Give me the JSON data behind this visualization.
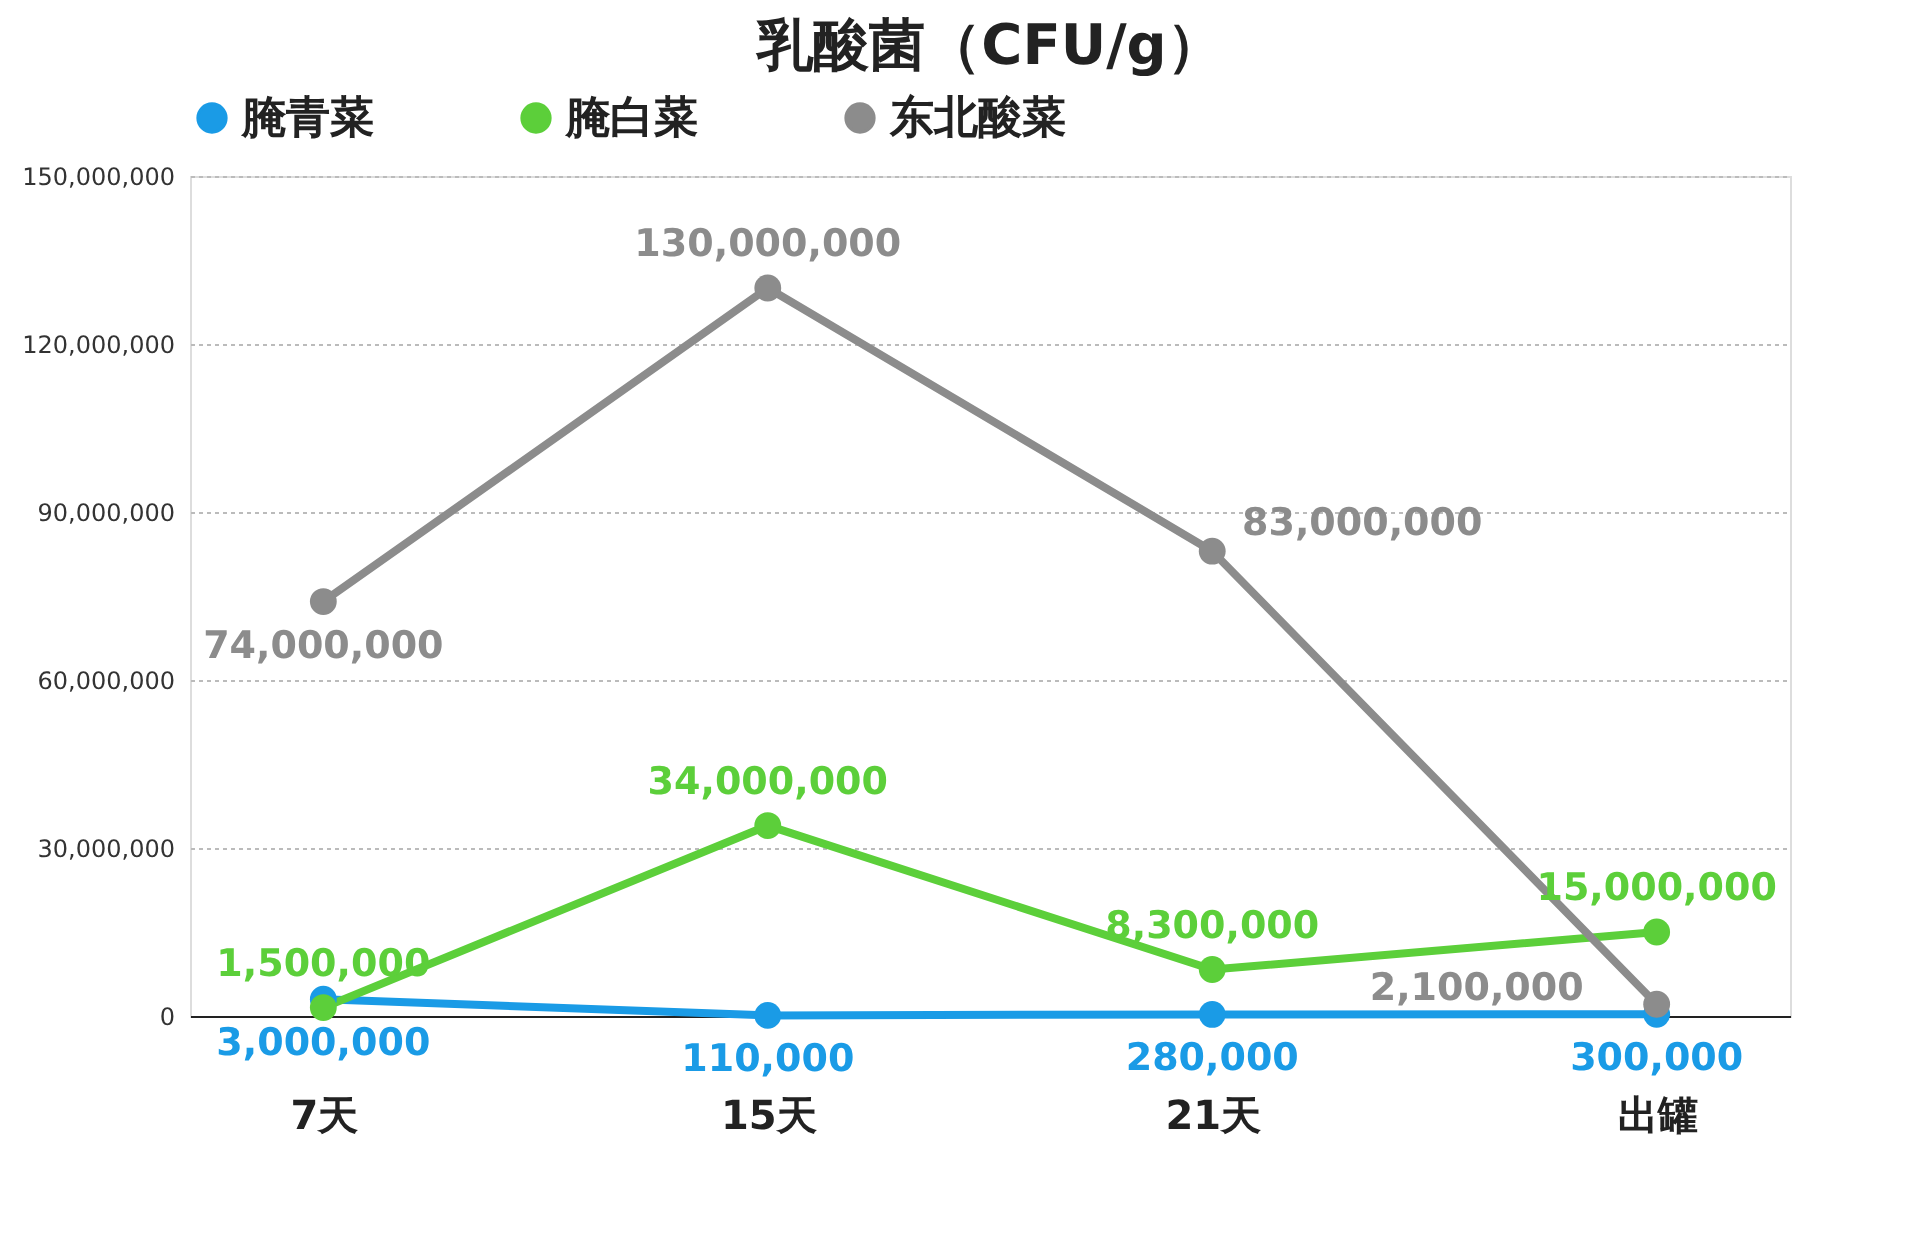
{
  "chart_data": {
    "type": "line",
    "title": "乳酸菌（CFU/g）",
    "categories": [
      "7天",
      "15天",
      "21天",
      "出罐"
    ],
    "series": [
      {
        "name": "腌青菜",
        "color": "#1a9be6",
        "values": [
          3000000,
          110000,
          280000,
          300000
        ],
        "value_labels": [
          "3,000,000",
          "110,000",
          "280,000",
          "300,000"
        ]
      },
      {
        "name": "腌白菜",
        "color": "#5ccf3a",
        "values": [
          1500000,
          34000000,
          8300000,
          15000000
        ],
        "value_labels": [
          "1,500,000",
          "34,000,000",
          "8,300,000",
          "15,000,000"
        ]
      },
      {
        "name": "东北酸菜",
        "color": "#8c8c8c",
        "values": [
          74000000,
          130000000,
          83000000,
          2100000
        ],
        "value_labels": [
          "74,000,000",
          "130,000,000",
          "83,000,000",
          "2,100,000"
        ]
      }
    ],
    "ylim": [
      0,
      150000000
    ],
    "yticks": [
      {
        "value": 0,
        "label": "0"
      },
      {
        "value": 30000000,
        "label": "30,000,000"
      },
      {
        "value": 60000000,
        "label": "60,000,000"
      },
      {
        "value": 90000000,
        "label": "90,000,000"
      },
      {
        "value": 120000000,
        "label": "120,000,000"
      },
      {
        "value": 150000000,
        "label": "150,000,000"
      }
    ],
    "grid": "y",
    "legend": "top",
    "marker": "circle",
    "line_style": "solid"
  }
}
